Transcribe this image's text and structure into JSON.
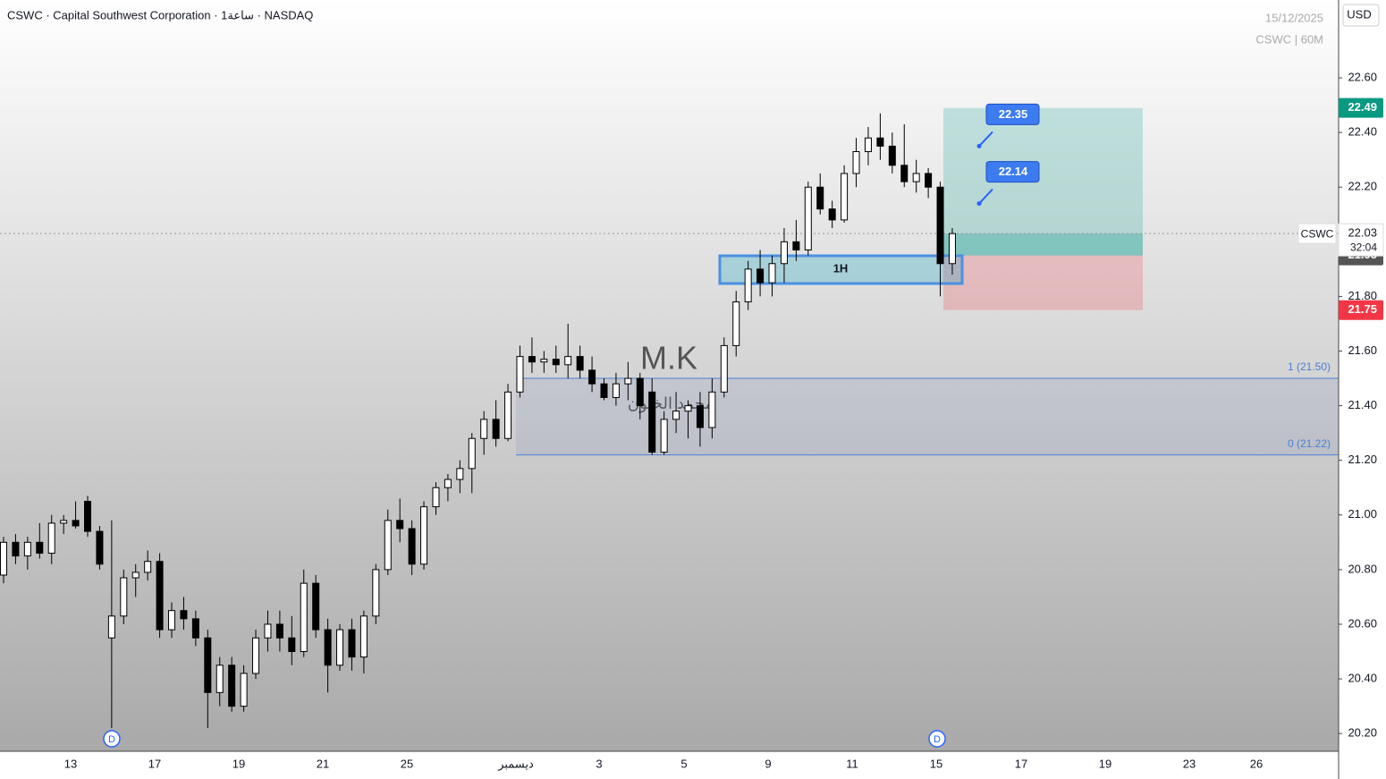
{
  "header": {
    "title": "CSWC · Capital Southwest Corporation · 1ساعة · NASDAQ",
    "date": "15/12/2025",
    "symbol_interval": "CSWC | 60M",
    "currency": "USD"
  },
  "chart_data": {
    "type": "candlestick",
    "open": [
      20.78,
      20.9,
      20.85,
      20.9,
      20.86,
      20.97,
      20.98,
      21.05,
      20.94,
      20.55,
      20.63,
      20.77,
      20.79,
      20.83,
      20.58,
      20.65,
      20.62,
      20.55,
      20.35,
      20.45,
      20.3,
      20.42,
      20.55,
      20.6,
      20.55,
      20.5,
      20.75,
      20.58,
      20.45,
      20.58,
      20.48,
      20.63,
      20.8,
      20.98,
      20.95,
      20.82,
      21.03,
      21.1,
      21.13,
      21.17,
      21.28,
      21.35,
      21.28,
      21.45,
      21.58,
      21.56,
      21.57,
      21.55,
      21.58,
      21.53,
      21.48,
      21.43,
      21.48,
      21.5,
      21.45,
      21.23,
      21.35,
      21.38,
      21.4,
      21.32,
      21.45,
      21.62,
      21.78,
      21.9,
      21.85,
      21.92,
      22.0,
      21.97,
      22.2,
      22.12,
      22.08,
      22.25,
      22.33,
      22.38,
      22.35,
      22.28,
      22.22,
      22.25,
      22.2,
      21.92
    ],
    "high": [
      20.92,
      20.93,
      20.92,
      20.97,
      21.0,
      21.0,
      21.05,
      21.07,
      20.96,
      20.98,
      20.8,
      20.82,
      20.87,
      20.86,
      20.68,
      20.7,
      20.65,
      20.58,
      20.48,
      20.48,
      20.45,
      20.58,
      20.65,
      20.65,
      20.63,
      20.8,
      20.78,
      20.62,
      20.6,
      20.62,
      20.65,
      20.82,
      21.02,
      21.06,
      20.98,
      21.05,
      21.12,
      21.15,
      21.2,
      21.3,
      21.38,
      21.42,
      21.48,
      21.62,
      21.65,
      21.6,
      21.62,
      21.7,
      21.62,
      21.58,
      21.5,
      21.52,
      21.56,
      21.52,
      21.5,
      21.38,
      21.45,
      21.42,
      21.45,
      21.5,
      21.65,
      21.82,
      21.93,
      21.97,
      21.95,
      22.05,
      22.08,
      22.22,
      22.25,
      22.15,
      22.28,
      22.38,
      22.42,
      22.47,
      22.4,
      22.43,
      22.3,
      22.27,
      22.22,
      22.05
    ],
    "low": [
      20.75,
      20.82,
      20.8,
      20.84,
      20.82,
      20.93,
      20.95,
      20.92,
      20.8,
      20.22,
      20.6,
      20.7,
      20.76,
      20.55,
      20.55,
      20.58,
      20.52,
      20.22,
      20.3,
      20.28,
      20.28,
      20.4,
      20.5,
      20.5,
      20.45,
      20.48,
      20.55,
      20.35,
      20.43,
      20.43,
      20.42,
      20.6,
      20.78,
      20.9,
      20.78,
      20.8,
      21.0,
      21.05,
      21.08,
      21.08,
      21.22,
      21.25,
      21.27,
      21.43,
      21.52,
      21.52,
      21.52,
      21.5,
      21.5,
      21.45,
      21.42,
      21.4,
      21.42,
      21.35,
      21.22,
      21.22,
      21.3,
      21.28,
      21.25,
      21.28,
      21.43,
      21.58,
      21.75,
      21.8,
      21.8,
      21.85,
      21.93,
      21.95,
      22.1,
      22.05,
      22.07,
      22.2,
      22.28,
      22.3,
      22.25,
      22.2,
      22.18,
      22.16,
      21.8,
      21.88
    ],
    "close": [
      20.9,
      20.85,
      20.9,
      20.86,
      20.97,
      20.98,
      20.96,
      20.94,
      20.82,
      20.63,
      20.77,
      20.79,
      20.83,
      20.58,
      20.65,
      20.62,
      20.55,
      20.35,
      20.45,
      20.3,
      20.42,
      20.55,
      20.6,
      20.55,
      20.5,
      20.75,
      20.58,
      20.45,
      20.58,
      20.48,
      20.63,
      20.8,
      20.98,
      20.95,
      20.82,
      21.03,
      21.1,
      21.13,
      21.17,
      21.28,
      21.35,
      21.28,
      21.45,
      21.58,
      21.56,
      21.57,
      21.55,
      21.58,
      21.53,
      21.48,
      21.43,
      21.48,
      21.5,
      21.4,
      21.23,
      21.35,
      21.38,
      21.4,
      21.32,
      21.45,
      21.62,
      21.78,
      21.9,
      21.85,
      21.92,
      22.0,
      21.97,
      22.2,
      22.12,
      22.08,
      22.25,
      22.33,
      22.38,
      22.35,
      22.28,
      22.22,
      22.25,
      22.2,
      21.92,
      22.03
    ],
    "up_color": "#ffffff",
    "down_color": "#000000",
    "ylim": [
      20.135,
      22.885
    ],
    "yticks": [
      {
        "value": 22.6,
        "label": "22.60"
      },
      {
        "value": 22.4,
        "label": "22.40"
      },
      {
        "value": 22.2,
        "label": "22.20"
      },
      {
        "value": 21.8,
        "label": "21.80"
      },
      {
        "value": 21.6,
        "label": "21.60"
      },
      {
        "value": 21.4,
        "label": "21.40"
      },
      {
        "value": 21.2,
        "label": "21.20"
      },
      {
        "value": 21.0,
        "label": "21.00"
      },
      {
        "value": 20.8,
        "label": "20.80"
      },
      {
        "value": 20.6,
        "label": "20.60"
      },
      {
        "value": 20.4,
        "label": "20.40"
      },
      {
        "value": 20.2,
        "label": "20.20"
      }
    ],
    "xtick_labels": [
      "13",
      "17",
      "19",
      "21",
      "25",
      "ديسمبر",
      "3",
      "5",
      "9",
      "11",
      "15",
      "17",
      "19",
      "23",
      "26"
    ],
    "symbol": "CSWC",
    "last_price": 22.03,
    "countdown": "32:04",
    "position": {
      "target": 22.49,
      "entry": 21.95,
      "stop": 21.75,
      "targets": [
        22.35,
        22.14
      ]
    },
    "zone_label": "1H",
    "fib": [
      {
        "value": 21.5,
        "label": "1 (21.50)"
      },
      {
        "value": 21.22,
        "label": "0 (21.22)"
      }
    ],
    "watermark": [
      "M.K",
      "محمد الخيون"
    ],
    "event_markers": [
      "D",
      "D"
    ]
  }
}
